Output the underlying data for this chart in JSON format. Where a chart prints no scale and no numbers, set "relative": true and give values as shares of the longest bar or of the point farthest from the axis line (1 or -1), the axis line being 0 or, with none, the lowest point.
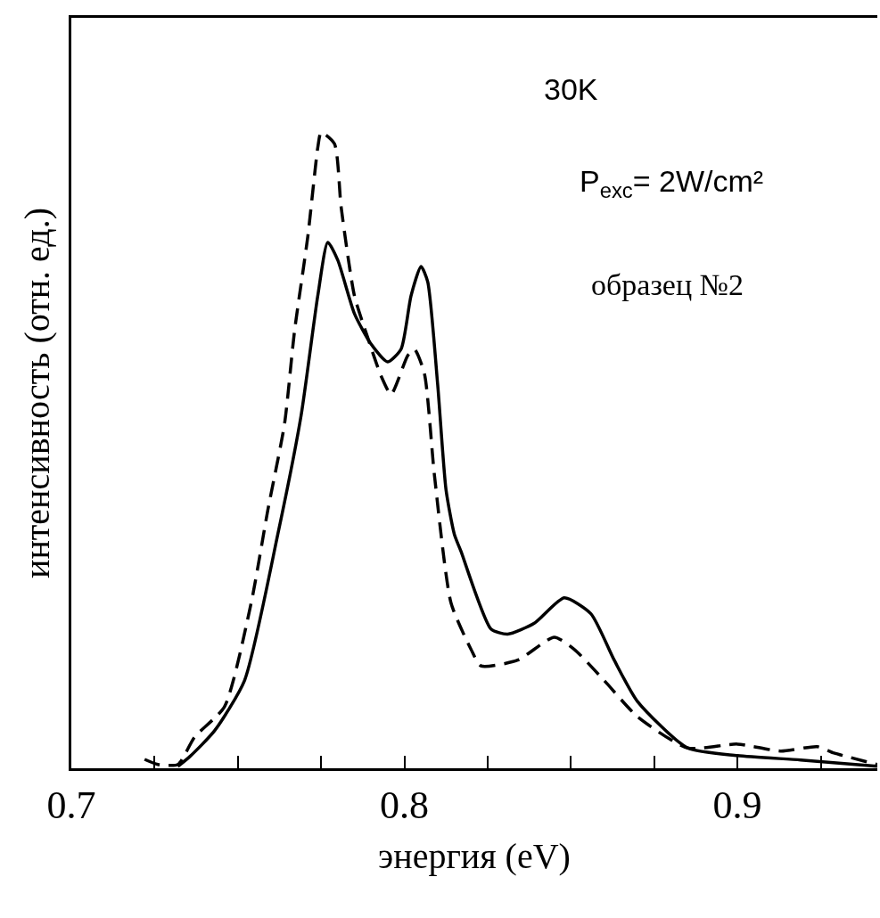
{
  "chart_data": {
    "type": "line",
    "relative": true,
    "xlabel": "энергия (eV)",
    "ylabel": "интенсивность (отн. ед.)",
    "annotations": [
      "30K",
      "P$_{exc}$= 2W/cm²",
      "образец №2"
    ],
    "xlim": [
      0.7,
      0.942
    ],
    "xticks": [
      0.7,
      {
        "value": 0.725,
        "label": null
      },
      {
        "value": 0.75,
        "label": null
      },
      {
        "value": 0.775,
        "label": null
      },
      0.8,
      {
        "value": 0.825,
        "label": null
      },
      {
        "value": 0.85,
        "label": null
      },
      {
        "value": 0.875,
        "label": null
      },
      0.9,
      {
        "value": 0.925,
        "label": null
      }
    ],
    "grid": false,
    "marker": "none",
    "series": [
      {
        "color": "#000000",
        "line_style": "solid",
        "x": [
          0.732,
          0.7355,
          0.743,
          0.752,
          0.762,
          0.769,
          0.774,
          0.777,
          0.78,
          0.785,
          0.79,
          0.795,
          0.799,
          0.802,
          0.805,
          0.807,
          0.81,
          0.8125,
          0.815,
          0.817,
          0.826,
          0.831,
          0.839,
          0.848,
          0.856,
          0.863,
          0.87,
          0.885,
          0.9,
          0.919,
          0.942
        ],
        "values": [
          0.003,
          0.018,
          0.059,
          0.138,
          0.368,
          0.555,
          0.743,
          0.827,
          0.799,
          0.715,
          0.667,
          0.639,
          0.659,
          0.743,
          0.789,
          0.765,
          0.603,
          0.438,
          0.368,
          0.341,
          0.219,
          0.211,
          0.228,
          0.268,
          0.243,
          0.17,
          0.105,
          0.032,
          0.02,
          0.013,
          0.003
        ]
      },
      {
        "color": "#000000",
        "line_style": "dashed",
        "x": [
          0.722,
          0.726,
          0.732,
          0.737,
          0.746,
          0.754,
          0.759,
          0.764,
          0.767,
          0.771,
          0.774,
          0.775,
          0.779,
          0.781,
          0.785,
          0.789,
          0.793,
          0.796,
          0.801,
          0.803,
          0.806,
          0.809,
          0.814,
          0.82,
          0.823,
          0.834,
          0.845,
          0.851,
          0.86,
          0.87,
          0.885,
          0.9,
          0.913,
          0.924,
          0.929,
          0.942
        ],
        "values": [
          0.014,
          0.006,
          0.006,
          0.049,
          0.097,
          0.26,
          0.406,
          0.541,
          0.687,
          0.836,
          0.976,
          1,
          0.982,
          0.883,
          0.743,
          0.677,
          0.617,
          0.588,
          0.649,
          0.659,
          0.621,
          0.462,
          0.26,
          0.187,
          0.161,
          0.17,
          0.206,
          0.187,
          0.138,
          0.081,
          0.032,
          0.038,
          0.027,
          0.034,
          0.024,
          0.006
        ]
      }
    ]
  }
}
